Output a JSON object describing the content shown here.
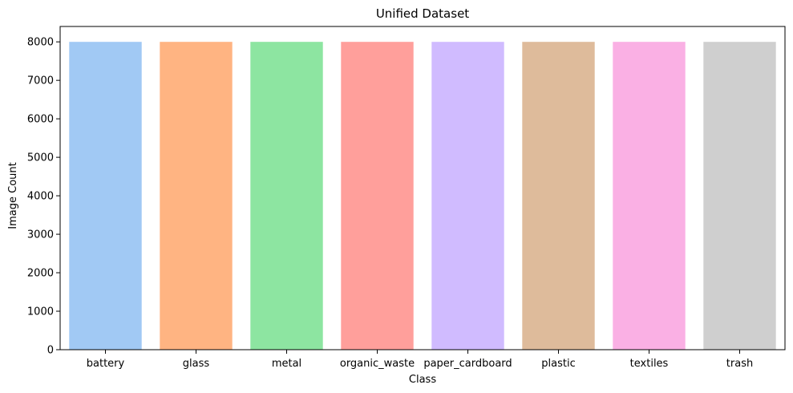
{
  "chart_data": {
    "type": "bar",
    "title": "Unified Dataset",
    "xlabel": "Class",
    "ylabel": "Image Count",
    "categories": [
      "battery",
      "glass",
      "metal",
      "organic_waste",
      "paper_cardboard",
      "plastic",
      "textiles",
      "trash"
    ],
    "values": [
      8000,
      8000,
      8000,
      8000,
      8000,
      8000,
      8000,
      8000
    ],
    "colors": [
      "#a1c9f4",
      "#ffb482",
      "#8de5a1",
      "#ff9f9b",
      "#d0bbff",
      "#debb9b",
      "#fab0e4",
      "#cfcfcf"
    ],
    "ylim": [
      0,
      8400
    ],
    "yticks": [
      0,
      1000,
      2000,
      3000,
      4000,
      5000,
      6000,
      7000,
      8000
    ],
    "grid": false,
    "legend": "none"
  }
}
